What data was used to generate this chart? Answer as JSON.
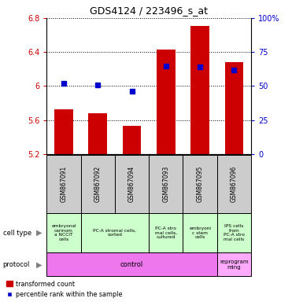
{
  "title": "GDS4124 / 223496_s_at",
  "samples": [
    "GSM867091",
    "GSM867092",
    "GSM867094",
    "GSM867093",
    "GSM867095",
    "GSM867096"
  ],
  "bar_values": [
    5.73,
    5.68,
    5.53,
    6.43,
    6.71,
    6.28
  ],
  "percentile_values": [
    52,
    51,
    46,
    65,
    64,
    62
  ],
  "ylim_left": [
    5.2,
    6.8
  ],
  "ylim_right": [
    0,
    100
  ],
  "yticks_left": [
    5.2,
    5.6,
    6.0,
    6.4,
    6.8
  ],
  "yticks_right": [
    0,
    25,
    50,
    75,
    100
  ],
  "ytick_labels_left": [
    "5.2",
    "5.6",
    "6",
    "6.4",
    "6.8"
  ],
  "ytick_labels_right": [
    "0",
    "25",
    "50",
    "75",
    "100%"
  ],
  "bar_color": "#cc0000",
  "dot_color": "#0000cc",
  "bar_width": 0.55,
  "grid_color": "black",
  "grid_linestyle": "dotted",
  "tick_label_color_left": "#cc0000",
  "tick_label_color_right": "#0000cc",
  "background_color": "white",
  "sample_box_color": "#cccccc",
  "cell_type_color": "#ccffcc",
  "protocol_color_control": "#ee77ee",
  "protocol_color_reprogram": "#ffaaff",
  "cell_spans": [
    [
      0,
      1,
      "embryonal\ncarinom\na NCCIT\ncells"
    ],
    [
      1,
      3,
      "PC-A stromal cells,\nsorted"
    ],
    [
      3,
      4,
      "PC-A stro\nmal cells,\ncultured"
    ],
    [
      4,
      5,
      "embryoni\nc stem\ncells"
    ],
    [
      5,
      6,
      "IPS cells\nfrom\nPC-A stro\nmal cells"
    ]
  ],
  "proto_spans": [
    [
      0,
      5,
      "control"
    ],
    [
      5,
      6,
      "reprogram\nming"
    ]
  ]
}
